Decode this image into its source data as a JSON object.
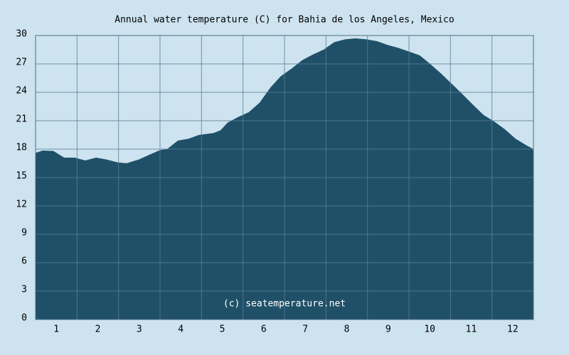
{
  "chart_data": {
    "type": "area",
    "title": "Annual water temperature (C) for Bahia de los Angeles, Mexico",
    "annotation": "(c) seatemperature.net",
    "categories": [
      "1",
      "2",
      "3",
      "4",
      "5",
      "6",
      "7",
      "8",
      "9",
      "10",
      "11",
      "12"
    ],
    "xlim": [
      0,
      12
    ],
    "x": [
      0,
      0.17,
      0.43,
      0.69,
      0.94,
      1.2,
      1.46,
      1.71,
      1.97,
      2.19,
      2.49,
      2.74,
      3,
      3.17,
      3.43,
      3.69,
      3.94,
      4.29,
      4.46,
      4.63,
      4.89,
      5.14,
      5.4,
      5.66,
      5.91,
      6.17,
      6.43,
      6.69,
      6.94,
      7.2,
      7.46,
      7.71,
      7.97,
      8.23,
      8.49,
      8.74,
      9,
      9.26,
      9.51,
      9.77,
      10.03,
      10.29,
      10.54,
      10.8,
      11.06,
      11.31,
      11.57,
      11.83,
      12
    ],
    "values": [
      17.6,
      17.85,
      17.8,
      17.1,
      17.1,
      16.8,
      17.1,
      16.9,
      16.6,
      16.5,
      16.9,
      17.4,
      17.9,
      18.0,
      18.9,
      19.1,
      19.5,
      19.7,
      20.0,
      20.8,
      21.4,
      21.9,
      22.9,
      24.5,
      25.7,
      26.5,
      27.4,
      28.0,
      28.5,
      29.3,
      29.6,
      29.7,
      29.6,
      29.4,
      29.0,
      28.7,
      28.3,
      27.9,
      27.0,
      26.0,
      24.9,
      23.8,
      22.7,
      21.6,
      20.9,
      20.1,
      19.1,
      18.4,
      18.0
    ],
    "color": "#1f5068",
    "ylim": [
      0,
      30
    ],
    "yticks": [
      0,
      3,
      6,
      9,
      12,
      15,
      18,
      21,
      24,
      27,
      30
    ],
    "grid": true
  }
}
